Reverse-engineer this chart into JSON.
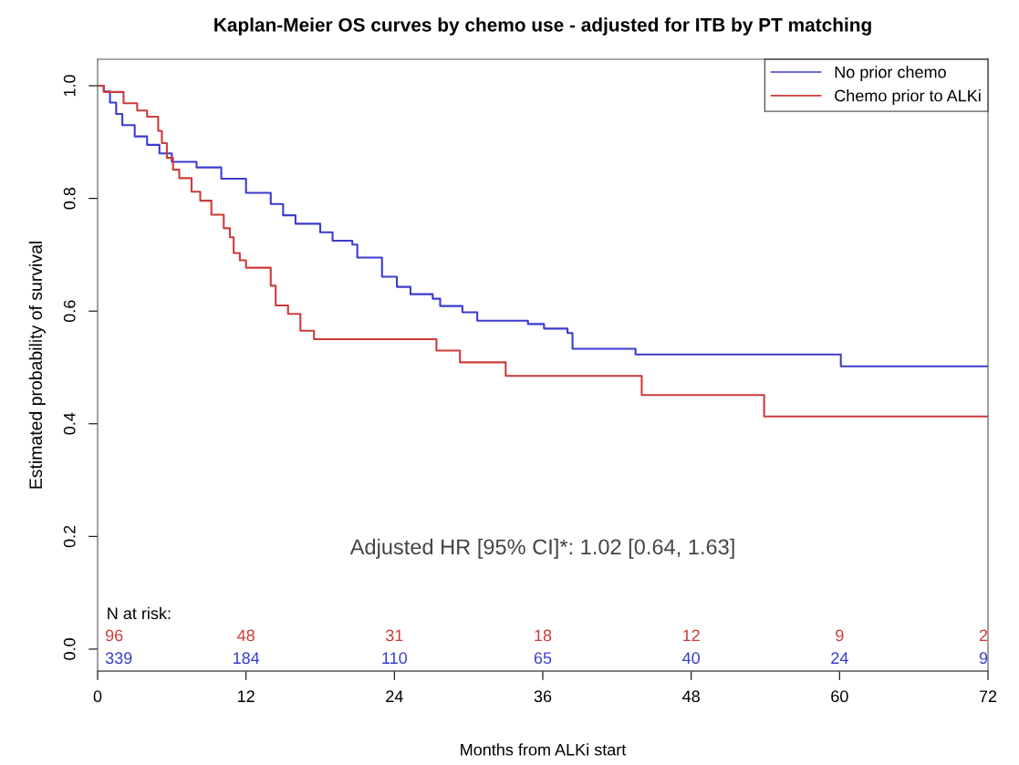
{
  "chart_data": {
    "type": "step",
    "title": "Kaplan-Meier OS curves by chemo use - adjusted for ITB by PT matching",
    "xlabel": "Months from ALKi start",
    "ylabel": "Estimated probability of survival",
    "xlim": [
      0,
      72
    ],
    "xticks": [
      0,
      12,
      24,
      36,
      48,
      60,
      72
    ],
    "ylim": [
      -0.039,
      1.047
    ],
    "yticks": [
      {
        "value": 0,
        "label": "0.0"
      },
      0.2,
      0.4,
      0.6,
      0.8,
      {
        "value": 1,
        "label": "1.0"
      }
    ],
    "grid": false,
    "legend": "top right",
    "line_style": "solid",
    "marker": "none",
    "series": [
      {
        "name": "No prior chemo",
        "color": "#3b3bd0",
        "x": [
          0,
          0.5,
          1,
          1.5,
          2,
          3,
          4,
          5,
          6,
          8,
          10,
          12,
          14,
          15,
          16,
          18,
          19,
          20.6,
          21.0,
          23.0,
          24.2,
          25.3,
          27.1,
          27.7,
          29.5,
          30.7,
          34.8,
          36.1,
          38.0,
          38.4,
          43.5,
          60.1,
          72
        ],
        "values": [
          1.0,
          0.99,
          0.97,
          0.95,
          0.93,
          0.91,
          0.895,
          0.88,
          0.865,
          0.855,
          0.835,
          0.81,
          0.79,
          0.77,
          0.755,
          0.74,
          0.725,
          0.718,
          0.695,
          0.661,
          0.643,
          0.63,
          0.622,
          0.609,
          0.598,
          0.583,
          0.577,
          0.569,
          0.561,
          0.533,
          0.523,
          0.502,
          0.502
        ]
      },
      {
        "name": "Chemo prior to ALKi",
        "color": "#cc3b3b",
        "x": [
          0,
          0.5,
          2.1,
          3.2,
          4.0,
          4.9,
          5.2,
          5.6,
          6.1,
          6.6,
          7.6,
          8.3,
          9.2,
          10.2,
          10.7,
          11.0,
          11.5,
          12.0,
          14.0,
          14.4,
          15.4,
          16.4,
          17.5,
          27.4,
          29.3,
          33.0,
          44.0,
          53.9,
          72
        ],
        "values": [
          1.0,
          0.989,
          0.969,
          0.956,
          0.945,
          0.92,
          0.898,
          0.872,
          0.851,
          0.836,
          0.812,
          0.796,
          0.771,
          0.747,
          0.731,
          0.703,
          0.69,
          0.677,
          0.645,
          0.61,
          0.595,
          0.565,
          0.55,
          0.53,
          0.509,
          0.485,
          0.451,
          0.413,
          0.413
        ]
      }
    ],
    "annotations": [
      "Adjusted HR [95% CI]*: 1.02 [0.64, 1.63]",
      "N at risk:",
      "96",
      "48",
      "31",
      "18",
      "12",
      "9",
      "2",
      "339",
      "184",
      "110",
      "65",
      "40",
      "24",
      "9"
    ]
  }
}
